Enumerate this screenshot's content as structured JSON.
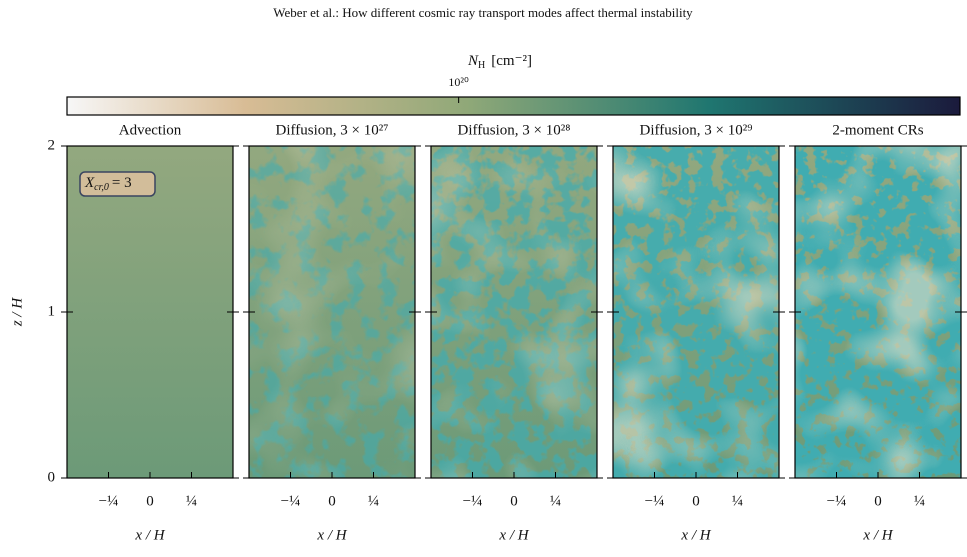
{
  "header": "Weber et al.: How different cosmic ray transport modes affect thermal instability",
  "colorbar": {
    "label": {
      "symbol": "N",
      "subscript": "H",
      "unit": "[cm⁻²]"
    },
    "clim": [
      3.2e+19,
      4.3e+20
    ],
    "log": true,
    "ticks": [
      {
        "value": 1e+20,
        "label": "10²⁰"
      }
    ]
  },
  "chart_data": [
    {
      "type": "image",
      "title": "Advection",
      "xlabel": "x / H",
      "ylabel": "z / H",
      "annotation": {
        "symbol": "X",
        "subscript": "cr,0",
        "rest": "= 3"
      },
      "xlim": [
        -0.5,
        0.5
      ],
      "ylim": [
        0,
        2
      ],
      "xticks": [
        {
          "value": -0.25,
          "label": "−¼"
        },
        0,
        {
          "value": 0.25,
          "label": "¼"
        }
      ],
      "yticks": [
        0,
        1,
        2
      ]
    },
    {
      "type": "image",
      "title": "Diffusion, 3 × 10²⁷",
      "xlabel": "x / H",
      "xlim": [
        -0.5,
        0.5
      ],
      "ylim": [
        0,
        2
      ],
      "xticks": [
        {
          "value": -0.25,
          "label": "−¼"
        },
        0,
        {
          "value": 0.25,
          "label": "¼"
        }
      ],
      "yticks": [
        0,
        1,
        2
      ]
    },
    {
      "type": "image",
      "title": "Diffusion, 3 × 10²⁸",
      "xlabel": "x / H",
      "xlim": [
        -0.5,
        0.5
      ],
      "ylim": [
        0,
        2
      ],
      "xticks": [
        {
          "value": -0.25,
          "label": "−¼"
        },
        0,
        {
          "value": 0.25,
          "label": "¼"
        }
      ],
      "yticks": [
        0,
        1,
        2
      ]
    },
    {
      "type": "image",
      "title": "Diffusion, 3 × 10²⁹",
      "xlabel": "x / H",
      "xlim": [
        -0.5,
        0.5
      ],
      "ylim": [
        0,
        2
      ],
      "xticks": [
        {
          "value": -0.25,
          "label": "−¼"
        },
        0,
        {
          "value": 0.25,
          "label": "¼"
        }
      ],
      "yticks": [
        0,
        1,
        2
      ]
    },
    {
      "type": "image",
      "title": "2-moment CRs",
      "xlabel": "x / H",
      "xlim": [
        -0.5,
        0.5
      ],
      "ylim": [
        0,
        2
      ],
      "xticks": [
        {
          "value": -0.25,
          "label": "−¼"
        },
        0,
        {
          "value": 0.25,
          "label": "¼"
        }
      ],
      "yticks": [
        0,
        1,
        2
      ]
    }
  ]
}
